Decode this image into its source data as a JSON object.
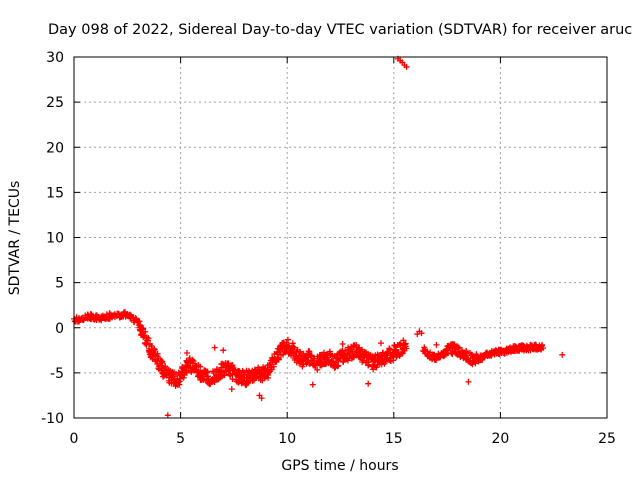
{
  "chart_data": {
    "type": "scatter",
    "title": "Day 098 of 2022, Sidereal Day-to-day VTEC variation (SDTVAR) for receiver aruc",
    "xlabel": "GPS time / hours",
    "ylabel": "SDTVAR / TECUs",
    "xlim": [
      0,
      25
    ],
    "ylim": [
      -10,
      30
    ],
    "xticks": [
      0,
      5,
      10,
      15,
      20,
      25
    ],
    "yticks": [
      -10,
      -5,
      0,
      5,
      10,
      15,
      20,
      25,
      30
    ],
    "grid": true,
    "marker": "plus",
    "color": "#ff0000",
    "series": [
      {
        "name": "SDTVAR",
        "curve": [
          [
            0.0,
            0.8
          ],
          [
            0.3,
            1.0
          ],
          [
            0.6,
            1.3
          ],
          [
            0.9,
            1.2
          ],
          [
            1.2,
            1.0
          ],
          [
            1.5,
            1.2
          ],
          [
            1.8,
            1.4
          ],
          [
            2.1,
            1.3
          ],
          [
            2.4,
            1.5
          ],
          [
            2.7,
            1.2
          ],
          [
            3.0,
            0.6
          ],
          [
            3.2,
            -0.4
          ],
          [
            3.4,
            -1.4
          ],
          [
            3.6,
            -2.4
          ],
          [
            3.8,
            -3.2
          ],
          [
            4.0,
            -4.0
          ],
          [
            4.2,
            -4.8
          ],
          [
            4.4,
            -5.3
          ],
          [
            4.6,
            -5.6
          ],
          [
            4.8,
            -5.7
          ],
          [
            5.0,
            -5.4
          ],
          [
            5.2,
            -4.6
          ],
          [
            5.4,
            -4.0
          ],
          [
            5.6,
            -4.3
          ],
          [
            5.8,
            -4.8
          ],
          [
            6.0,
            -5.2
          ],
          [
            6.2,
            -5.4
          ],
          [
            6.4,
            -5.5
          ],
          [
            6.6,
            -5.2
          ],
          [
            6.8,
            -4.9
          ],
          [
            7.0,
            -4.6
          ],
          [
            7.2,
            -4.4
          ],
          [
            7.4,
            -4.8
          ],
          [
            7.6,
            -5.2
          ],
          [
            7.8,
            -5.5
          ],
          [
            8.0,
            -5.6
          ],
          [
            8.2,
            -5.5
          ],
          [
            8.4,
            -5.2
          ],
          [
            8.6,
            -5.0
          ],
          [
            8.8,
            -5.2
          ],
          [
            9.0,
            -5.0
          ],
          [
            9.2,
            -4.4
          ],
          [
            9.4,
            -3.6
          ],
          [
            9.6,
            -2.8
          ],
          [
            9.8,
            -2.2
          ],
          [
            10.0,
            -2.0
          ],
          [
            10.2,
            -2.4
          ],
          [
            10.4,
            -3.0
          ],
          [
            10.6,
            -3.4
          ],
          [
            10.8,
            -3.6
          ],
          [
            11.0,
            -3.3
          ],
          [
            11.2,
            -3.6
          ],
          [
            11.4,
            -3.9
          ],
          [
            11.6,
            -3.6
          ],
          [
            11.8,
            -3.2
          ],
          [
            12.0,
            -3.4
          ],
          [
            12.2,
            -3.7
          ],
          [
            12.4,
            -3.6
          ],
          [
            12.6,
            -3.2
          ],
          [
            12.8,
            -3.0
          ],
          [
            13.0,
            -2.7
          ],
          [
            13.2,
            -2.6
          ],
          [
            13.4,
            -2.9
          ],
          [
            13.6,
            -3.3
          ],
          [
            13.8,
            -3.7
          ],
          [
            14.0,
            -3.9
          ],
          [
            14.2,
            -3.7
          ],
          [
            14.4,
            -3.4
          ],
          [
            14.6,
            -3.2
          ],
          [
            14.8,
            -3.0
          ],
          [
            15.0,
            -2.8
          ],
          [
            15.2,
            -2.5
          ],
          [
            15.4,
            -2.2
          ],
          [
            15.6,
            -2.0
          ],
          [
            16.4,
            -2.4
          ],
          [
            16.6,
            -2.9
          ],
          [
            16.8,
            -3.2
          ],
          [
            17.0,
            -3.3
          ],
          [
            17.2,
            -3.0
          ],
          [
            17.4,
            -2.8
          ],
          [
            17.6,
            -2.4
          ],
          [
            17.8,
            -2.3
          ],
          [
            18.0,
            -2.5
          ],
          [
            18.2,
            -2.8
          ],
          [
            18.4,
            -3.0
          ],
          [
            18.6,
            -3.4
          ],
          [
            18.8,
            -3.6
          ],
          [
            19.0,
            -3.4
          ],
          [
            19.2,
            -3.2
          ],
          [
            19.4,
            -3.0
          ],
          [
            19.6,
            -2.8
          ],
          [
            19.8,
            -2.7
          ],
          [
            20.0,
            -2.6
          ],
          [
            20.2,
            -2.7
          ],
          [
            20.4,
            -2.5
          ],
          [
            20.6,
            -2.3
          ],
          [
            20.8,
            -2.3
          ],
          [
            21.0,
            -2.2
          ],
          [
            21.2,
            -2.3
          ],
          [
            21.4,
            -2.2
          ],
          [
            21.6,
            -2.1
          ],
          [
            21.8,
            -2.2
          ],
          [
            22.0,
            -2.1
          ]
        ],
        "outliers": [
          [
            4.4,
            -9.7
          ],
          [
            15.2,
            29.8
          ],
          [
            15.3,
            29.6
          ],
          [
            15.4,
            29.4
          ],
          [
            15.5,
            29.1
          ],
          [
            15.6,
            28.9
          ],
          [
            16.2,
            -0.4
          ],
          [
            16.1,
            -0.7
          ],
          [
            16.3,
            -0.6
          ],
          [
            22.9,
            -3.0
          ],
          [
            8.7,
            -7.5
          ],
          [
            8.8,
            -7.8
          ],
          [
            7.4,
            -6.8
          ],
          [
            11.2,
            -6.3
          ],
          [
            13.8,
            -6.2
          ],
          [
            18.5,
            -6.0
          ],
          [
            5.3,
            -2.8
          ],
          [
            6.6,
            -2.2
          ],
          [
            7.0,
            -2.5
          ],
          [
            12.6,
            -1.8
          ],
          [
            14.4,
            -1.7
          ],
          [
            17.0,
            -1.9
          ]
        ]
      }
    ]
  }
}
